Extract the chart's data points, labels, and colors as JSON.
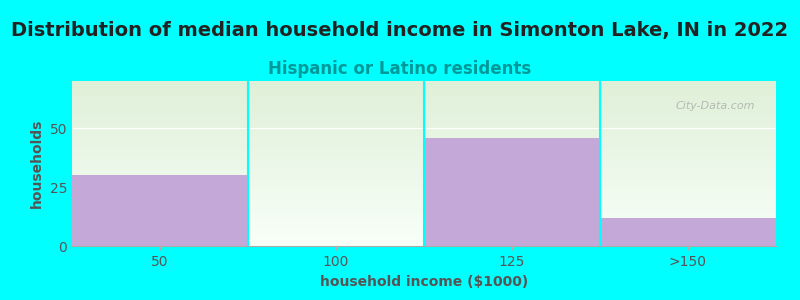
{
  "title": "Distribution of median household income in Simonton Lake, IN in 2022",
  "subtitle": "Hispanic or Latino residents",
  "xlabel": "household income ($1000)",
  "ylabel": "households",
  "background_color": "#00FFFF",
  "bar_color": "#c4a8d8",
  "categories": [
    "50",
    "100",
    "125",
    ">150"
  ],
  "values": [
    30,
    0,
    46,
    12
  ],
  "ylim": [
    0,
    70
  ],
  "yticks": [
    0,
    25,
    50
  ],
  "title_fontsize": 14,
  "subtitle_fontsize": 12,
  "subtitle_color": "#009999",
  "axis_label_fontsize": 10,
  "tick_fontsize": 10,
  "tick_color": "#555555",
  "watermark": "City-Data.com",
  "grad_top": "#dff0d8",
  "grad_bottom": "#f8fff8"
}
